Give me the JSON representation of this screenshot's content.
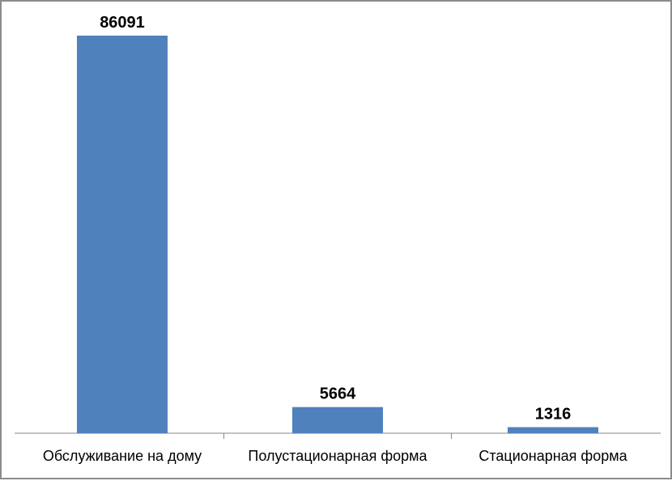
{
  "chart_data": {
    "type": "bar",
    "title": "",
    "xlabel": "",
    "ylabel": "",
    "categories": [
      "Обслуживание на дому",
      "Полустационарная форма",
      "Стационарная форма"
    ],
    "values": [
      86091,
      5664,
      1316
    ],
    "data_labels": [
      "86091",
      "5664",
      "1316"
    ],
    "ylim": [
      0,
      86091
    ],
    "grid": false,
    "legend": "none",
    "colors": {
      "bar": "#4f81bd",
      "axis": "#868686",
      "frame": "#8c8c8c"
    }
  }
}
